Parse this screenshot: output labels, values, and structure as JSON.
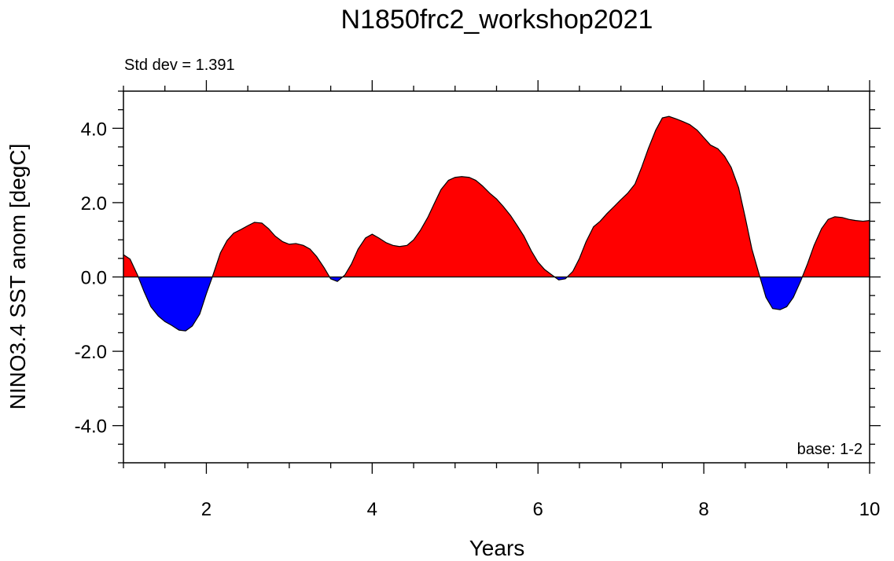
{
  "chart_data": {
    "type": "area",
    "title": "N1850frc2_workshop2021",
    "subtitle_left": "Std dev = 1.391",
    "annotation_right": "base: 1-2",
    "xlabel": "Years",
    "ylabel": "NINO3.4 SST anom [degC]",
    "xlim": [
      1,
      10
    ],
    "ylim": [
      -5,
      5
    ],
    "x_ticks": [
      2,
      4,
      6,
      8,
      10
    ],
    "x_tick_labels": [
      "2",
      "4",
      "6",
      "8",
      "10"
    ],
    "y_ticks": [
      -4,
      -2,
      0,
      2,
      4
    ],
    "y_tick_labels": [
      "-4.0",
      "-2.0",
      "0.0",
      "2.0",
      "4.0"
    ],
    "reference_line": 0,
    "colors": {
      "positive": "#ff0000",
      "negative": "#0000ff",
      "line": "#000000"
    },
    "series": [
      {
        "x": [
          1.0,
          1.08,
          1.17,
          1.25,
          1.33,
          1.42,
          1.5,
          1.58,
          1.67,
          1.75,
          1.83,
          1.92,
          2.0,
          2.08,
          2.17,
          2.25,
          2.33,
          2.42,
          2.5,
          2.58,
          2.67,
          2.75,
          2.83,
          2.92,
          3.0,
          3.08,
          3.17,
          3.25,
          3.33,
          3.42,
          3.5,
          3.58,
          3.67,
          3.75,
          3.83,
          3.92,
          4.0,
          4.08,
          4.17,
          4.25,
          4.33,
          4.42,
          4.5,
          4.58,
          4.67,
          4.75,
          4.83,
          4.92,
          5.0,
          5.08,
          5.17,
          5.25,
          5.33,
          5.42,
          5.5,
          5.58,
          5.67,
          5.75,
          5.83,
          5.92,
          6.0,
          6.08,
          6.17,
          6.25,
          6.33,
          6.42,
          6.5,
          6.58,
          6.67,
          6.75,
          6.83,
          6.92,
          7.0,
          7.08,
          7.17,
          7.25,
          7.33,
          7.42,
          7.5,
          7.58,
          7.67,
          7.75,
          7.83,
          7.92,
          8.0,
          8.08,
          8.17,
          8.25,
          8.33,
          8.42,
          8.5,
          8.58,
          8.67,
          8.75,
          8.83,
          8.92,
          9.0,
          9.08,
          9.17,
          9.25,
          9.33,
          9.42,
          9.5,
          9.58,
          9.67,
          9.75,
          9.83,
          9.92,
          10.0
        ],
        "values": [
          0.6,
          0.48,
          0.05,
          -0.4,
          -0.8,
          -1.05,
          -1.2,
          -1.3,
          -1.43,
          -1.45,
          -1.32,
          -1.0,
          -0.45,
          0.05,
          0.65,
          0.98,
          1.18,
          1.28,
          1.38,
          1.47,
          1.45,
          1.3,
          1.1,
          0.95,
          0.88,
          0.9,
          0.85,
          0.75,
          0.55,
          0.25,
          -0.05,
          -0.12,
          0.05,
          0.35,
          0.75,
          1.05,
          1.15,
          1.05,
          0.92,
          0.85,
          0.82,
          0.85,
          1.0,
          1.25,
          1.6,
          1.98,
          2.35,
          2.6,
          2.68,
          2.7,
          2.68,
          2.6,
          2.45,
          2.25,
          2.1,
          1.9,
          1.65,
          1.38,
          1.1,
          0.7,
          0.4,
          0.2,
          0.05,
          -0.08,
          -0.05,
          0.15,
          0.5,
          0.95,
          1.35,
          1.5,
          1.7,
          1.9,
          2.08,
          2.25,
          2.5,
          2.95,
          3.45,
          3.95,
          4.28,
          4.32,
          4.25,
          4.18,
          4.1,
          3.95,
          3.75,
          3.55,
          3.45,
          3.25,
          2.95,
          2.4,
          1.6,
          0.75,
          0.05,
          -0.55,
          -0.85,
          -0.88,
          -0.8,
          -0.55,
          -0.1,
          0.35,
          0.85,
          1.3,
          1.55,
          1.62,
          1.6,
          1.55,
          1.52,
          1.5,
          1.52
        ]
      }
    ]
  }
}
